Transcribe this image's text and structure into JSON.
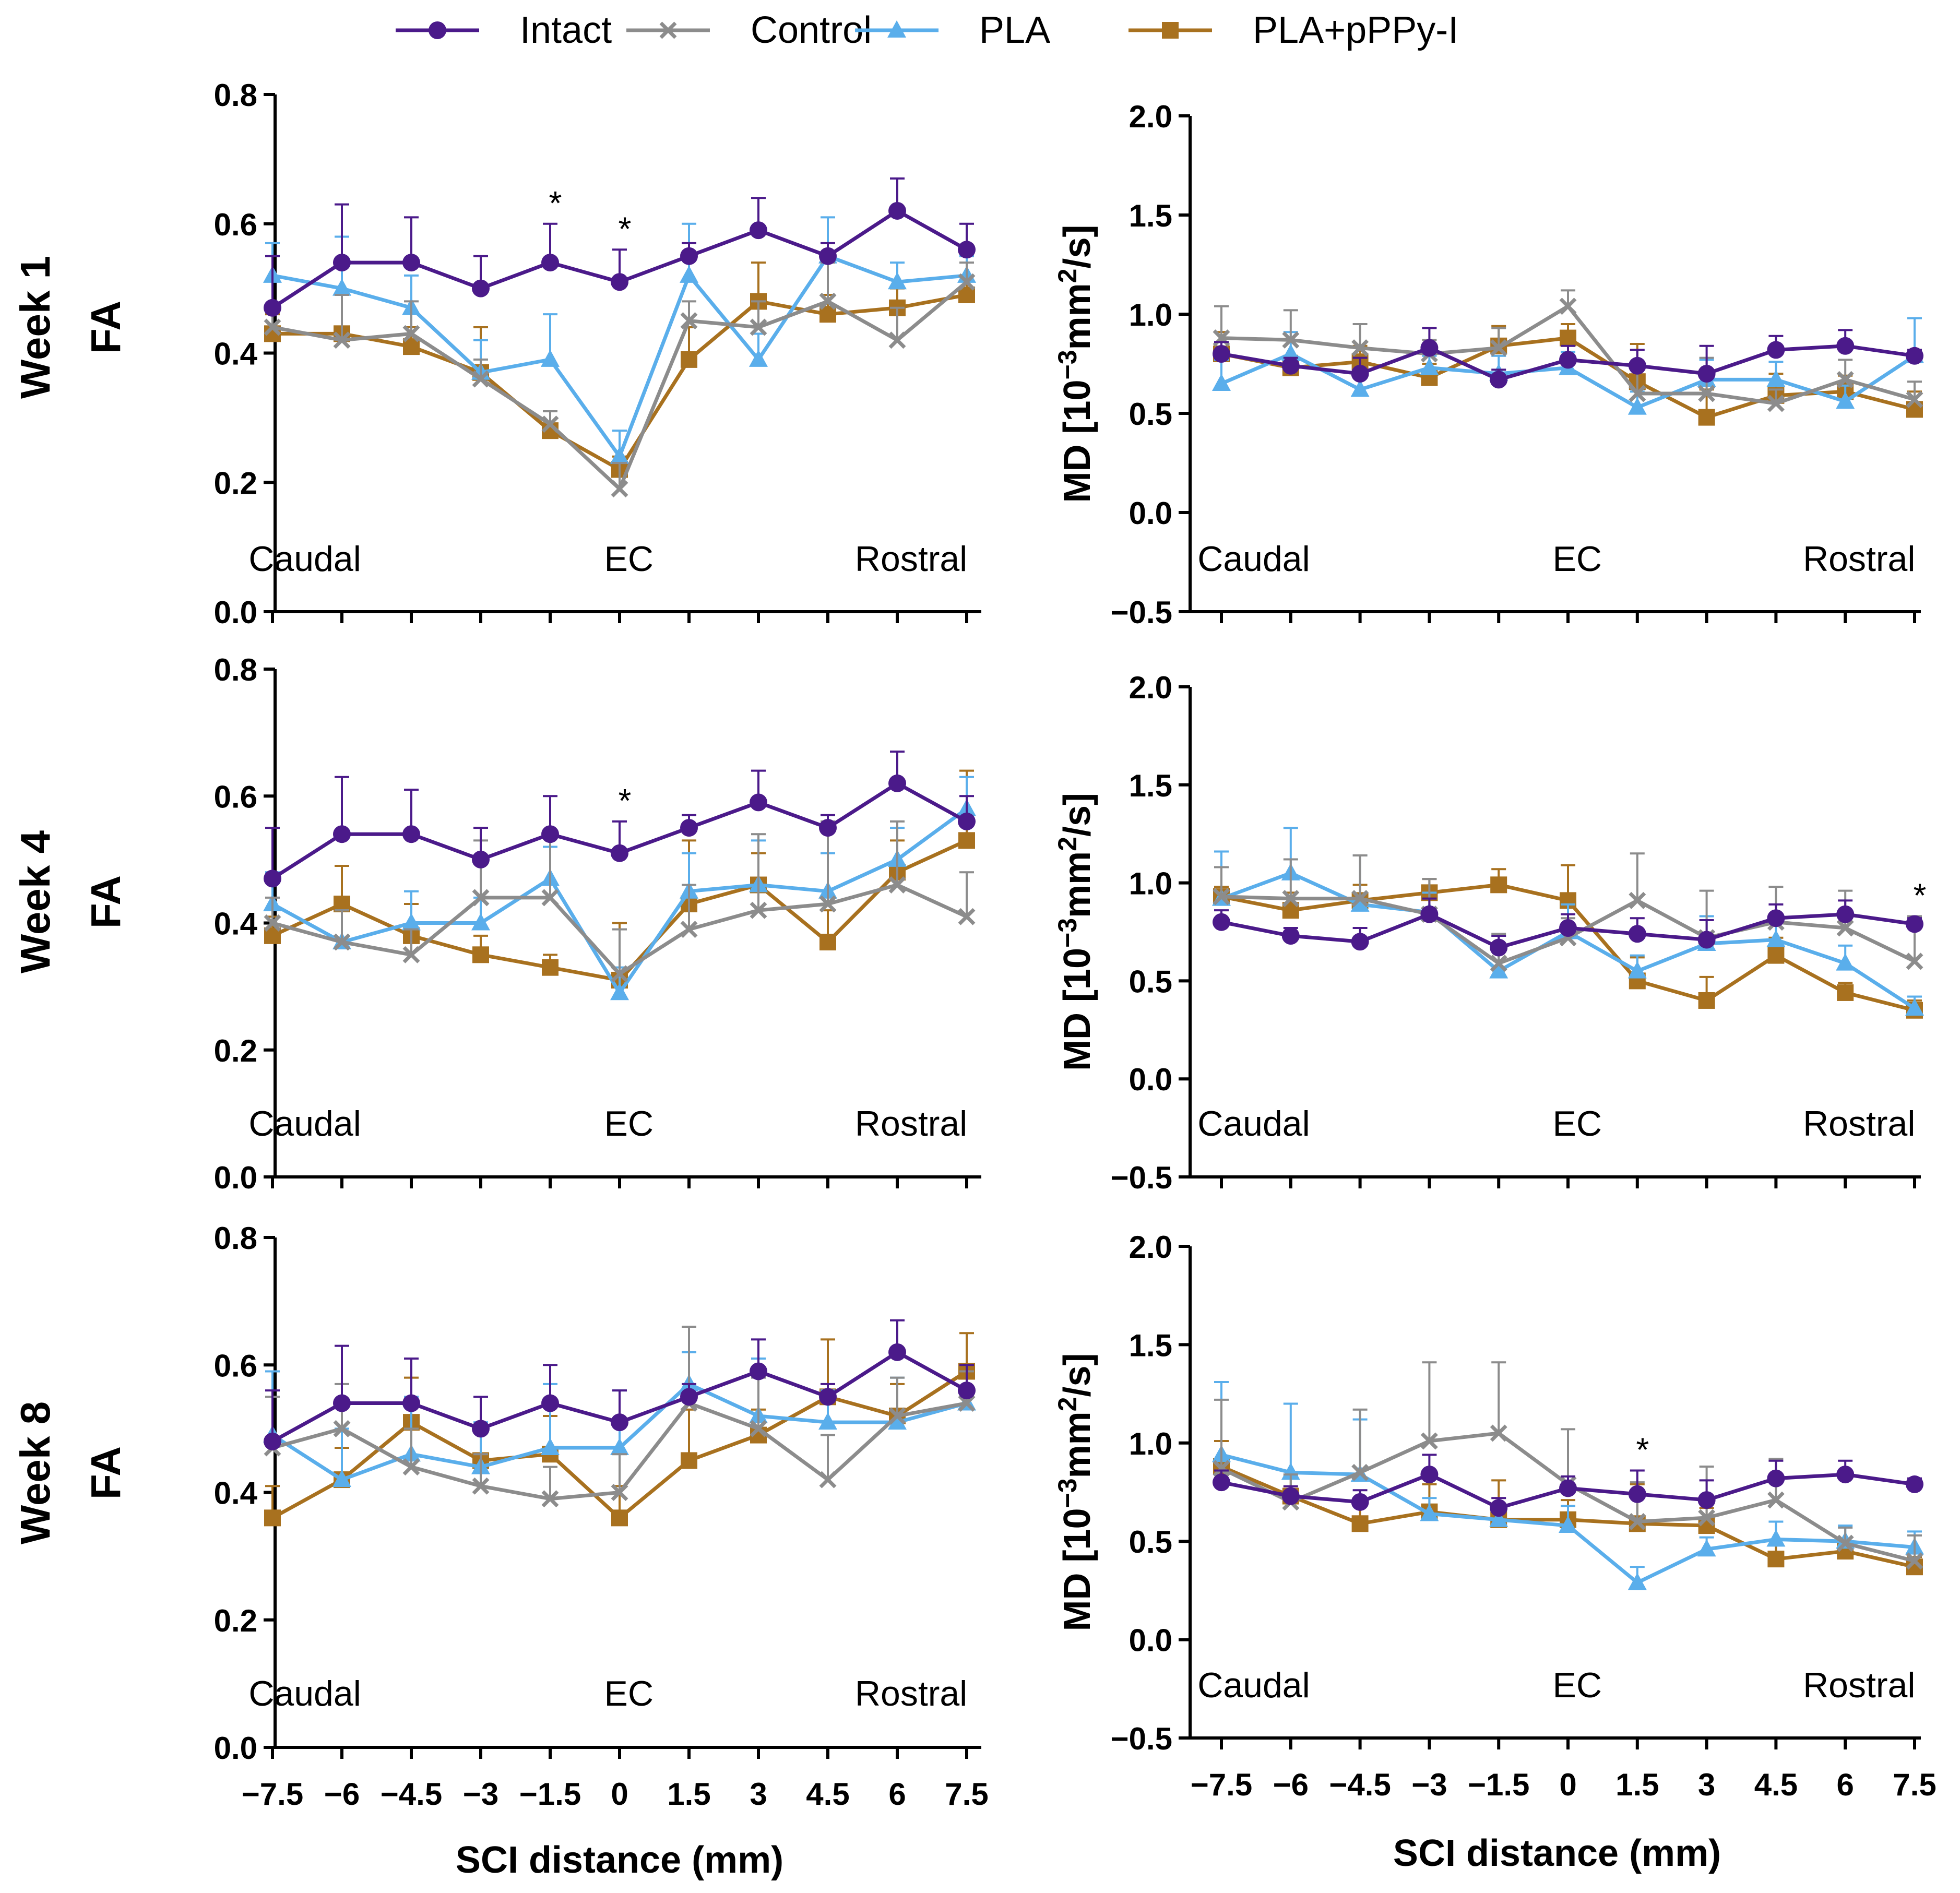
{
  "legend": {
    "items": [
      {
        "name": "Intact",
        "color": "#4B1A8A",
        "marker": "circle"
      },
      {
        "name": "Control",
        "color": "#8C8C8C",
        "marker": "x"
      },
      {
        "name": "PLA",
        "color": "#5AAEEB",
        "marker": "triangle"
      },
      {
        "name": "PLA+pPPy-I",
        "color": "#A8711F",
        "marker": "square"
      }
    ]
  },
  "row_titles": [
    "Week 1",
    "Week 4",
    "Week 8"
  ],
  "region_labels": {
    "caudal": "Caudal",
    "ec": "EC",
    "rostral": "Rostral"
  },
  "xlabel": "SCI distance (mm)",
  "x_tick_labels": [
    "−7.5",
    "−6",
    "−4.5",
    "−3",
    "−1.5",
    "0",
    "1.5",
    "3",
    "4.5",
    "6",
    "7.5"
  ],
  "fa_axis": {
    "ylabel": "FA",
    "ylim": [
      0,
      0.8
    ],
    "ticks": [
      "0.0",
      "0.2",
      "0.4",
      "0.6",
      "0.8"
    ]
  },
  "md_axis": {
    "ylabel_prefix": "MD [10",
    "ylabel_exponent": "−3",
    "ylabel_unit": "mm",
    "ylabel_unit_exponent": "2",
    "ylabel_suffix": "/s]",
    "ylim": [
      -0.5,
      2.0
    ],
    "ticks": [
      "−0.5",
      "0.0",
      "0.5",
      "1.0",
      "1.5",
      "2.0"
    ]
  },
  "chart_data": [
    {
      "id": "week1-fa",
      "type": "line",
      "row": "Week 1",
      "ylabel": "FA",
      "xlabel": "",
      "ylim": [
        0,
        0.8
      ],
      "x": [
        -7.5,
        -6,
        -4.5,
        -3,
        -1.5,
        0,
        1.5,
        3,
        4.5,
        6,
        7.5
      ],
      "series": [
        {
          "name": "Intact",
          "values": [
            0.47,
            0.54,
            0.54,
            0.5,
            0.54,
            0.51,
            0.55,
            0.59,
            0.55,
            0.62,
            0.56
          ],
          "errors": [
            0.08,
            0.09,
            0.07,
            0.05,
            0.06,
            0.05,
            0.02,
            0.05,
            0.02,
            0.05,
            0.04
          ]
        },
        {
          "name": "Control",
          "values": [
            0.44,
            0.42,
            0.43,
            0.36,
            0.29,
            0.19,
            0.45,
            0.44,
            0.48,
            0.42,
            0.51
          ],
          "errors": [
            0.03,
            0.07,
            0.05,
            0.03,
            0.02,
            0.04,
            0.03,
            0.04,
            0.06,
            0.05,
            0.03
          ]
        },
        {
          "name": "PLA",
          "values": [
            0.52,
            0.5,
            0.47,
            0.37,
            0.39,
            0.24,
            0.52,
            0.39,
            0.55,
            0.51,
            0.52
          ],
          "errors": [
            0.05,
            0.08,
            0.05,
            0.05,
            0.07,
            0.04,
            0.08,
            0.04,
            0.06,
            0.03,
            0.03
          ]
        },
        {
          "name": "PLA+pPPy-I",
          "values": [
            0.43,
            0.43,
            0.41,
            0.37,
            0.28,
            0.22,
            0.39,
            0.48,
            0.46,
            0.47,
            0.49
          ],
          "errors": [
            0.03,
            0.06,
            0.03,
            0.07,
            0.03,
            0.02,
            0.05,
            0.06,
            0.03,
            0.03,
            0.03
          ]
        }
      ],
      "annotations": [
        {
          "x": -1.5,
          "text": "*"
        },
        {
          "x": 0,
          "text": "*"
        }
      ],
      "regions": [
        "Caudal",
        "EC",
        "Rostral"
      ]
    },
    {
      "id": "week1-md",
      "type": "line",
      "row": "Week 1",
      "ylabel": "MD [10^-3 mm^2/s]",
      "xlabel": "",
      "ylim": [
        -0.5,
        2.0
      ],
      "x": [
        -7.5,
        -6,
        -4.5,
        -3,
        -1.5,
        0,
        1.5,
        3,
        4.5,
        6,
        7.5
      ],
      "series": [
        {
          "name": "Intact",
          "values": [
            0.8,
            0.74,
            0.7,
            0.83,
            0.67,
            0.77,
            0.74,
            0.7,
            0.82,
            0.84,
            0.79
          ],
          "errors": [
            0.06,
            0.04,
            0.08,
            0.1,
            0.05,
            0.07,
            0.08,
            0.14,
            0.07,
            0.08,
            0.03
          ]
        },
        {
          "name": "Control",
          "values": [
            0.88,
            0.87,
            0.83,
            0.8,
            0.83,
            1.04,
            0.6,
            0.6,
            0.55,
            0.67,
            0.57
          ],
          "errors": [
            0.16,
            0.15,
            0.12,
            0.07,
            0.1,
            0.08,
            0.13,
            0.18,
            0.07,
            0.1,
            0.09
          ]
        },
        {
          "name": "PLA",
          "values": [
            0.65,
            0.8,
            0.62,
            0.73,
            0.7,
            0.73,
            0.53,
            0.67,
            0.67,
            0.56,
            0.79
          ],
          "errors": [
            0.12,
            0.11,
            0.08,
            0.06,
            0.09,
            0.08,
            0.08,
            0.1,
            0.09,
            0.08,
            0.19
          ]
        },
        {
          "name": "PLA+pPPy-I",
          "values": [
            0.8,
            0.73,
            0.76,
            0.68,
            0.84,
            0.88,
            0.66,
            0.48,
            0.59,
            0.61,
            0.52
          ],
          "errors": [
            0.11,
            0.06,
            0.08,
            0.07,
            0.1,
            0.07,
            0.19,
            0.14,
            0.11,
            0.08,
            0.09
          ]
        }
      ],
      "annotations": [],
      "regions": [
        "Caudal",
        "EC",
        "Rostral"
      ]
    },
    {
      "id": "week4-fa",
      "type": "line",
      "row": "Week 4",
      "ylabel": "FA",
      "xlabel": "",
      "ylim": [
        0,
        0.8
      ],
      "x": [
        -7.5,
        -6,
        -4.5,
        -3,
        -1.5,
        0,
        1.5,
        3,
        4.5,
        6,
        7.5
      ],
      "series": [
        {
          "name": "Intact",
          "values": [
            0.47,
            0.54,
            0.54,
            0.5,
            0.54,
            0.51,
            0.55,
            0.59,
            0.55,
            0.62,
            0.56
          ],
          "errors": [
            0.08,
            0.09,
            0.07,
            0.05,
            0.06,
            0.05,
            0.02,
            0.05,
            0.02,
            0.05,
            0.04
          ]
        },
        {
          "name": "Control",
          "values": [
            0.4,
            0.37,
            0.35,
            0.44,
            0.44,
            0.32,
            0.39,
            0.42,
            0.43,
            0.46,
            0.41
          ],
          "errors": [
            0.04,
            0.05,
            0.04,
            0.09,
            0.1,
            0.07,
            0.07,
            0.12,
            0.13,
            0.1,
            0.07
          ]
        },
        {
          "name": "PLA",
          "values": [
            0.43,
            0.37,
            0.4,
            0.4,
            0.47,
            0.29,
            0.45,
            0.46,
            0.45,
            0.5,
            0.58
          ],
          "errors": [
            0.05,
            0.05,
            0.05,
            0.04,
            0.05,
            0.04,
            0.06,
            0.07,
            0.06,
            0.05,
            0.05
          ]
        },
        {
          "name": "PLA+pPPy-I",
          "values": [
            0.38,
            0.43,
            0.38,
            0.35,
            0.33,
            0.31,
            0.43,
            0.46,
            0.37,
            0.48,
            0.53
          ],
          "errors": [
            0.03,
            0.06,
            0.05,
            0.03,
            0.02,
            0.09,
            0.1,
            0.05,
            0.05,
            0.05,
            0.11
          ]
        }
      ],
      "annotations": [
        {
          "x": 0,
          "text": "*"
        }
      ],
      "regions": [
        "Caudal",
        "EC",
        "Rostral"
      ]
    },
    {
      "id": "week4-md",
      "type": "line",
      "row": "Week 4",
      "ylabel": "MD [10^-3 mm^2/s]",
      "xlabel": "",
      "ylim": [
        -0.5,
        2.0
      ],
      "x": [
        -7.5,
        -6,
        -4.5,
        -3,
        -1.5,
        0,
        1.5,
        3,
        4.5,
        6,
        7.5
      ],
      "series": [
        {
          "name": "Intact",
          "values": [
            0.8,
            0.73,
            0.7,
            0.84,
            0.67,
            0.77,
            0.74,
            0.71,
            0.82,
            0.84,
            0.79
          ],
          "errors": [
            0.06,
            0.04,
            0.07,
            0.08,
            0.06,
            0.07,
            0.08,
            0.1,
            0.07,
            0.07,
            0.03
          ]
        },
        {
          "name": "Control",
          "values": [
            0.93,
            0.92,
            0.92,
            0.84,
            0.59,
            0.72,
            0.91,
            0.72,
            0.8,
            0.77,
            0.6
          ],
          "errors": [
            0.15,
            0.2,
            0.22,
            0.18,
            0.15,
            0.1,
            0.24,
            0.24,
            0.18,
            0.19,
            0.23
          ]
        },
        {
          "name": "PLA",
          "values": [
            0.92,
            1.05,
            0.89,
            0.85,
            0.55,
            0.75,
            0.55,
            0.69,
            0.71,
            0.59,
            0.36
          ],
          "errors": [
            0.24,
            0.23,
            0.25,
            0.1,
            0.1,
            0.14,
            0.08,
            0.14,
            0.1,
            0.09,
            0.06
          ]
        },
        {
          "name": "PLA+pPPy-I",
          "values": [
            0.93,
            0.86,
            0.91,
            0.95,
            0.99,
            0.91,
            0.5,
            0.4,
            0.63,
            0.44,
            0.35
          ],
          "errors": [
            0.05,
            0.09,
            0.08,
            0.07,
            0.08,
            0.18,
            0.12,
            0.12,
            0.09,
            0.05,
            0.05
          ]
        }
      ],
      "annotations": [
        {
          "x": 7.5,
          "text": "*"
        }
      ],
      "regions": [
        "Caudal",
        "EC",
        "Rostral"
      ]
    },
    {
      "id": "week8-fa",
      "type": "line",
      "row": "Week 8",
      "ylabel": "FA",
      "xlabel": "SCI distance (mm)",
      "ylim": [
        0,
        0.8
      ],
      "x": [
        -7.5,
        -6,
        -4.5,
        -3,
        -1.5,
        0,
        1.5,
        3,
        4.5,
        6,
        7.5
      ],
      "series": [
        {
          "name": "Intact",
          "values": [
            0.48,
            0.54,
            0.54,
            0.5,
            0.54,
            0.51,
            0.55,
            0.59,
            0.55,
            0.62,
            0.56
          ],
          "errors": [
            0.08,
            0.09,
            0.07,
            0.05,
            0.06,
            0.05,
            0.02,
            0.05,
            0.02,
            0.05,
            0.04
          ]
        },
        {
          "name": "Control",
          "values": [
            0.47,
            0.5,
            0.44,
            0.41,
            0.39,
            0.4,
            0.54,
            0.5,
            0.42,
            0.52,
            0.54
          ],
          "errors": [
            0.08,
            0.07,
            0.06,
            0.05,
            0.05,
            0.06,
            0.12,
            0.08,
            0.07,
            0.06,
            0.05
          ]
        },
        {
          "name": "PLA",
          "values": [
            0.49,
            0.42,
            0.46,
            0.44,
            0.47,
            0.47,
            0.57,
            0.52,
            0.51,
            0.51,
            0.54
          ],
          "errors": [
            0.1,
            0.08,
            0.09,
            0.07,
            0.1,
            0.09,
            0.05,
            0.09,
            0.05,
            0.07,
            0.05
          ]
        },
        {
          "name": "PLA+pPPy-I",
          "values": [
            0.36,
            0.42,
            0.51,
            0.45,
            0.46,
            0.36,
            0.45,
            0.49,
            0.55,
            0.52,
            0.59
          ],
          "errors": [
            0.05,
            0.05,
            0.07,
            0.05,
            0.06,
            0.05,
            0.08,
            0.04,
            0.09,
            0.05,
            0.06
          ]
        }
      ],
      "annotations": [],
      "regions": [
        "Caudal",
        "EC",
        "Rostral"
      ]
    },
    {
      "id": "week8-md",
      "type": "line",
      "row": "Week 8",
      "ylabel": "MD [10^-3 mm^2/s]",
      "xlabel": "SCI distance (mm)",
      "ylim": [
        -0.5,
        2.0
      ],
      "x": [
        -7.5,
        -6,
        -4.5,
        -3,
        -1.5,
        0,
        1.5,
        3,
        4.5,
        6,
        7.5
      ],
      "series": [
        {
          "name": "Intact",
          "values": [
            0.8,
            0.73,
            0.7,
            0.84,
            0.67,
            0.77,
            0.74,
            0.71,
            0.82,
            0.84,
            0.79
          ],
          "errors": [
            0.06,
            0.05,
            0.06,
            0.1,
            0.05,
            0.06,
            0.12,
            0.1,
            0.09,
            0.07,
            0.03
          ]
        },
        {
          "name": "Control",
          "values": [
            0.87,
            0.7,
            0.85,
            1.01,
            1.05,
            0.79,
            0.6,
            0.62,
            0.71,
            0.49,
            0.4
          ],
          "errors": [
            0.35,
            0.14,
            0.32,
            0.4,
            0.36,
            0.28,
            0.2,
            0.26,
            0.21,
            0.08,
            0.13
          ]
        },
        {
          "name": "PLA",
          "values": [
            0.94,
            0.85,
            0.84,
            0.64,
            0.61,
            0.58,
            0.29,
            0.46,
            0.51,
            0.5,
            0.47
          ],
          "errors": [
            0.37,
            0.35,
            0.28,
            0.08,
            0.07,
            0.1,
            0.08,
            0.06,
            0.09,
            0.08,
            0.08
          ]
        },
        {
          "name": "PLA+pPPy-I",
          "values": [
            0.88,
            0.73,
            0.59,
            0.65,
            0.61,
            0.61,
            0.59,
            0.58,
            0.41,
            0.45,
            0.37
          ],
          "errors": [
            0.13,
            0.1,
            0.09,
            0.14,
            0.2,
            0.1,
            0.2,
            0.09,
            0.07,
            0.05,
            0.05
          ]
        }
      ],
      "annotations": [
        {
          "x": 1.5,
          "text": "*"
        }
      ],
      "regions": [
        "Caudal",
        "EC",
        "Rostral"
      ]
    }
  ]
}
